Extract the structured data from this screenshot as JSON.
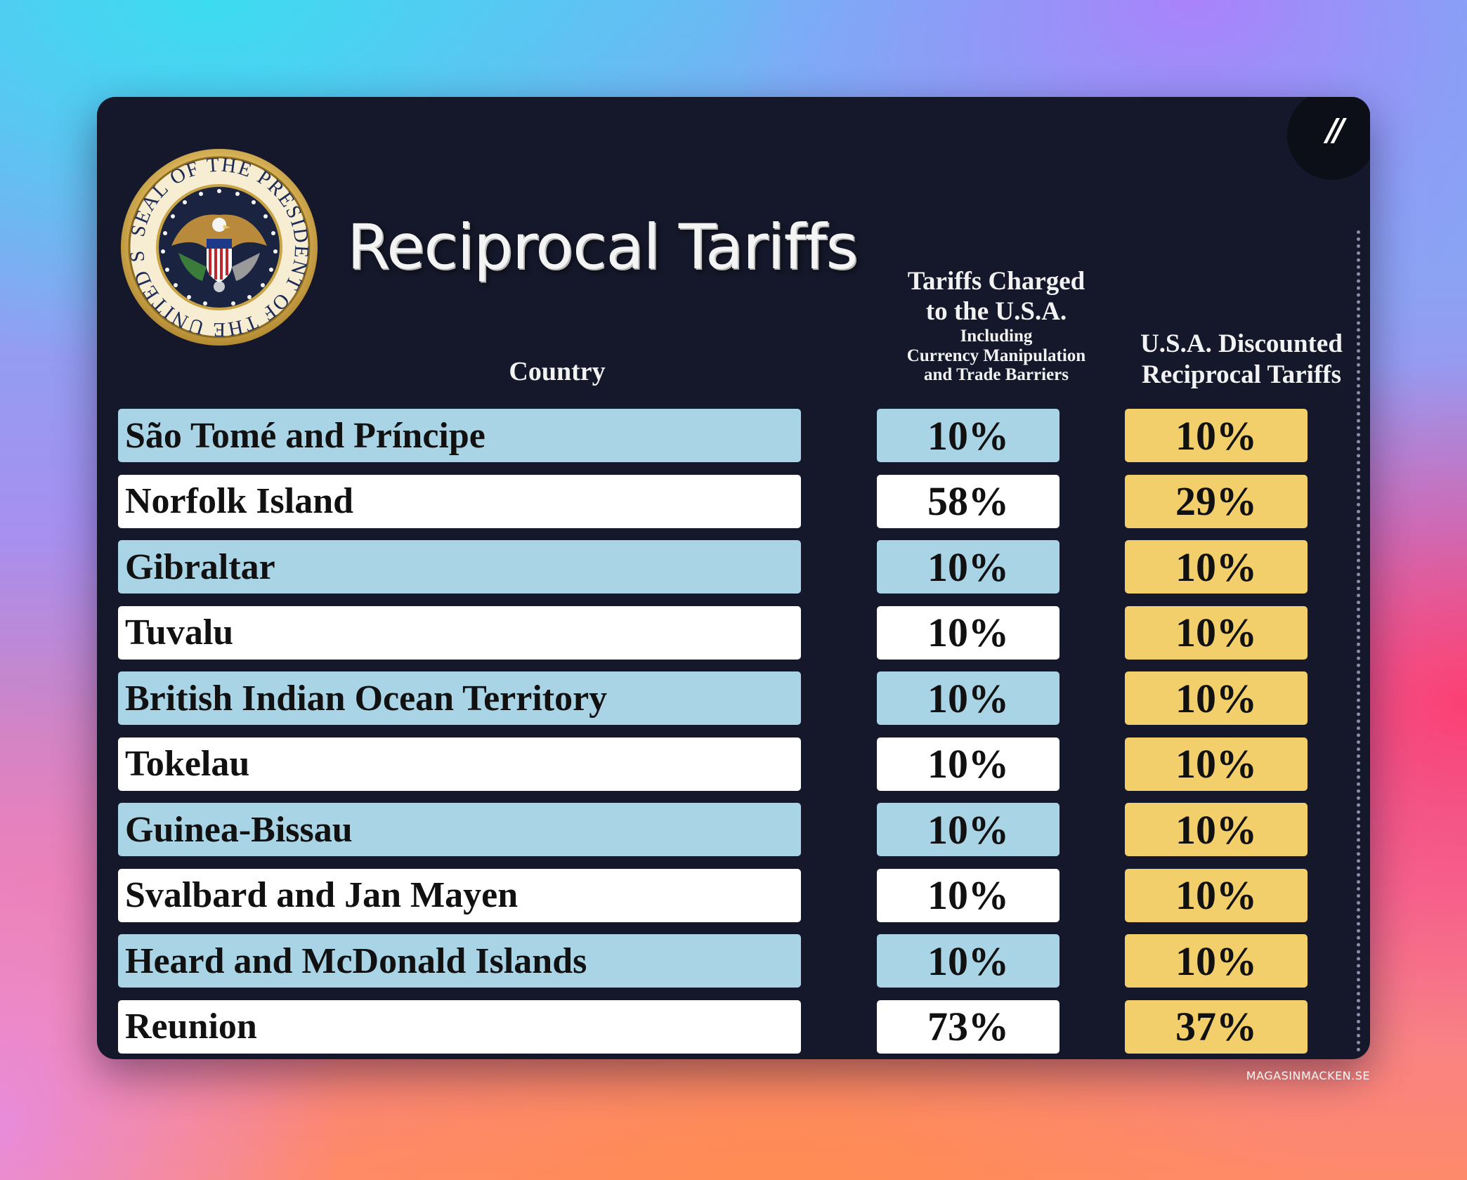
{
  "title": "Reciprocal Tariffs",
  "seal": {
    "icon": "presidential-seal-icon",
    "text": "SEAL OF THE PRESIDENT OF THE UNITED STATES"
  },
  "corner_mark": "//",
  "headers": {
    "country": "Country",
    "charged_line1": "Tariffs Charged",
    "charged_line2": "to the U.S.A.",
    "charged_sub1": "Including",
    "charged_sub2": "Currency Manipulation",
    "charged_sub3": "and Trade Barriers",
    "discounted_line1": "U.S.A. Discounted",
    "discounted_line2": "Reciprocal Tariffs"
  },
  "rows": [
    {
      "country": "São Tomé and Príncipe",
      "charged": "10%",
      "discounted": "10%"
    },
    {
      "country": "Norfolk Island",
      "charged": "58%",
      "discounted": "29%"
    },
    {
      "country": "Gibraltar",
      "charged": "10%",
      "discounted": "10%"
    },
    {
      "country": "Tuvalu",
      "charged": "10%",
      "discounted": "10%"
    },
    {
      "country": "British Indian Ocean Territory",
      "charged": "10%",
      "discounted": "10%"
    },
    {
      "country": "Tokelau",
      "charged": "10%",
      "discounted": "10%"
    },
    {
      "country": "Guinea-Bissau",
      "charged": "10%",
      "discounted": "10%"
    },
    {
      "country": "Svalbard and Jan Mayen",
      "charged": "10%",
      "discounted": "10%"
    },
    {
      "country": "Heard and McDonald Islands",
      "charged": "10%",
      "discounted": "10%"
    },
    {
      "country": "Reunion",
      "charged": "73%",
      "discounted": "37%"
    }
  ],
  "colors": {
    "card_background": "#15182a",
    "row_blue": "#a9d4e6",
    "row_white": "#ffffff",
    "discount_gold": "#f2cf6a"
  },
  "watermark": "MAGASINMACKEN.SE"
}
